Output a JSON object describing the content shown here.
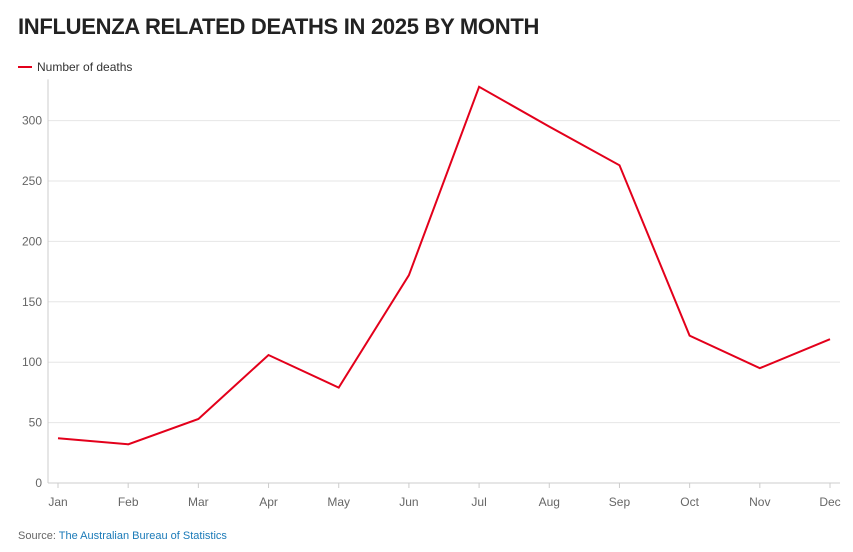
{
  "colors": {
    "series": "#e3001b",
    "grid": "#e6e6e6",
    "axis": "#cccccc",
    "link": "#1a7ab8"
  },
  "chart_data": {
    "type": "line",
    "title": "INFLUENZA RELATED DEATHS IN 2025 BY MONTH",
    "xlabel": "",
    "ylabel": "",
    "categories": [
      "Jan",
      "Feb",
      "Mar",
      "Apr",
      "May",
      "Jun",
      "Jul",
      "Aug",
      "Sep",
      "Oct",
      "Nov",
      "Dec"
    ],
    "series": [
      {
        "name": "Number of deaths",
        "values": [
          37,
          32,
          53,
          106,
          79,
          172,
          328,
          295,
          263,
          122,
          95,
          119
        ]
      }
    ],
    "ylim": [
      0,
      330
    ],
    "yticks": [
      0,
      50,
      100,
      150,
      200,
      250,
      300
    ],
    "grid": true,
    "legend_position": "top-left"
  },
  "source": {
    "label": "Source:",
    "link_text": "The Australian Bureau of Statistics"
  }
}
